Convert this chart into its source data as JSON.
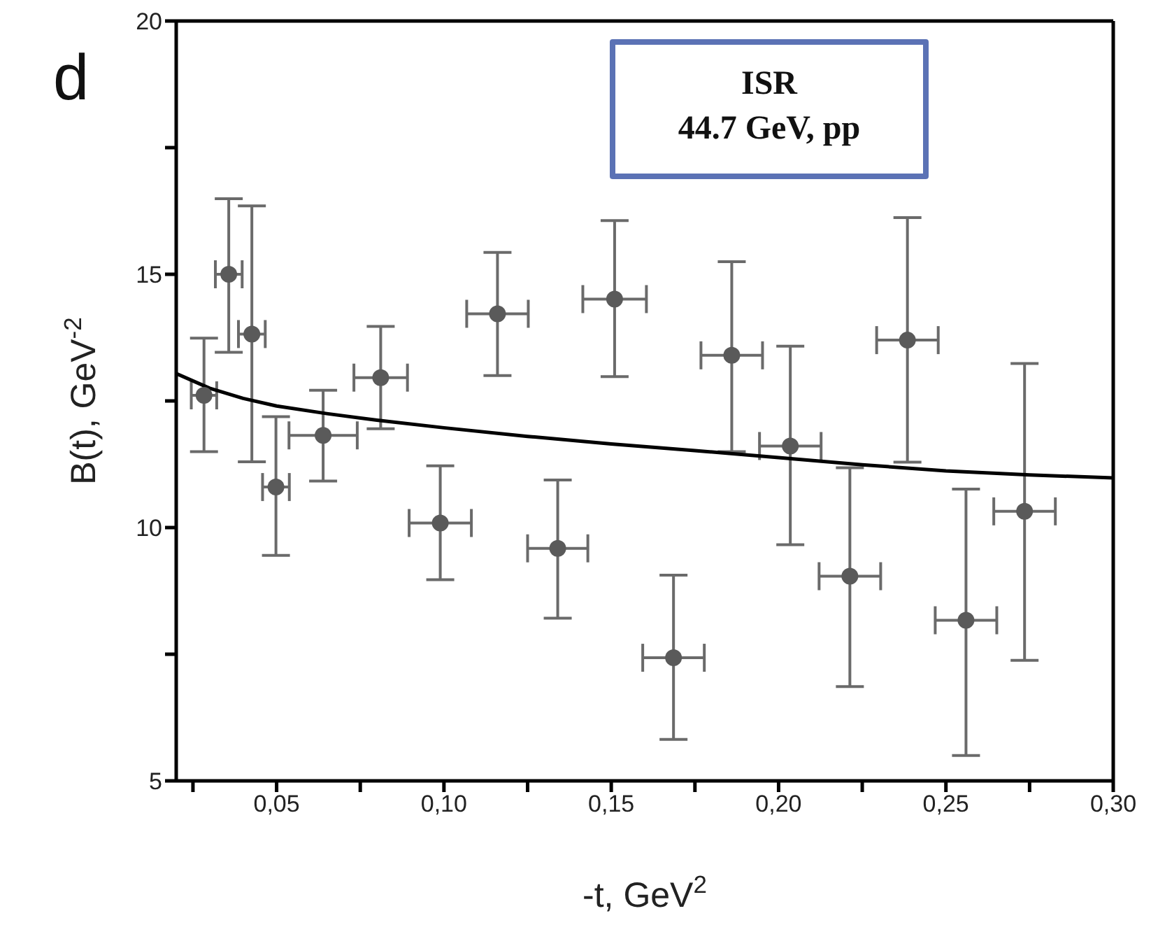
{
  "chart_data": {
    "type": "scatter",
    "xlabel": "-t, GeV$^{2}$",
    "ylabel": "B(t), GeV$^{-2}$",
    "annotations": [
      "d",
      "ISR",
      "44.7 GeV, pp"
    ],
    "xlim": [
      0.02,
      0.3
    ],
    "xticks": [
      {
        "value": 0.025,
        "label": null
      },
      {
        "value": 0.05,
        "label": "0,05"
      },
      {
        "value": 0.075,
        "label": null
      },
      {
        "value": 0.1,
        "label": "0,10"
      },
      {
        "value": 0.125,
        "label": null
      },
      {
        "value": 0.15,
        "label": "0,15"
      },
      {
        "value": 0.175,
        "label": null
      },
      {
        "value": 0.2,
        "label": "0,20"
      },
      {
        "value": 0.225,
        "label": null
      },
      {
        "value": 0.25,
        "label": "0,25"
      },
      {
        "value": 0.275,
        "label": null
      },
      {
        "value": 0.3,
        "label": "0,30"
      }
    ],
    "ylim": [
      5,
      20
    ],
    "yticks": [
      5,
      {
        "value": 7.5,
        "label": null
      },
      10,
      {
        "value": 12.5,
        "label": null
      },
      15,
      {
        "value": 17.5,
        "label": null
      },
      20
    ],
    "marker": "circle",
    "series": [
      {
        "color": "#5a5a5a",
        "x": [
          0.0283,
          0.0357,
          0.0426,
          0.0498,
          0.0639,
          0.0811,
          0.0989,
          0.116,
          0.134,
          0.151,
          0.1686,
          0.186,
          0.2035,
          0.2213,
          0.2385,
          0.256,
          0.2735
        ],
        "values": [
          12.61,
          15.0,
          13.82,
          10.8,
          11.82,
          12.96,
          10.09,
          14.22,
          9.59,
          14.51,
          7.43,
          13.4,
          11.61,
          9.04,
          13.7,
          8.17,
          10.32
        ],
        "errors": [
          [
            11.5,
            13.74
          ],
          [
            13.46,
            16.49
          ],
          [
            11.3,
            16.35
          ],
          [
            9.45,
            12.19
          ],
          [
            10.92,
            12.71
          ],
          [
            11.95,
            13.97
          ],
          [
            8.97,
            11.22
          ],
          [
            13.0,
            15.43
          ],
          [
            8.21,
            10.94
          ],
          [
            12.98,
            16.06
          ],
          [
            5.82,
            9.06
          ],
          [
            11.5,
            15.25
          ],
          [
            9.66,
            13.58
          ],
          [
            6.86,
            11.18
          ],
          [
            11.29,
            16.12
          ],
          [
            5.5,
            10.76
          ],
          [
            7.38,
            13.24
          ]
        ],
        "xerrors": [
          0.0038,
          0.004,
          0.004,
          0.004,
          0.0102,
          0.008,
          0.0093,
          0.0092,
          0.009,
          0.0095,
          0.0092,
          0.0092,
          0.0092,
          0.0092,
          0.0092,
          0.0092,
          0.0092
        ]
      },
      {
        "type": "line",
        "color": "#000000",
        "marker": "none",
        "line_style": "solid",
        "x": [
          0.02,
          0.03,
          0.04,
          0.05,
          0.065,
          0.08,
          0.1,
          0.125,
          0.15,
          0.175,
          0.2,
          0.225,
          0.25,
          0.275,
          0.3
        ],
        "values": [
          13.04,
          12.75,
          12.55,
          12.4,
          12.25,
          12.12,
          11.97,
          11.8,
          11.65,
          11.52,
          11.38,
          11.24,
          11.12,
          11.04,
          10.98
        ]
      }
    ]
  }
}
